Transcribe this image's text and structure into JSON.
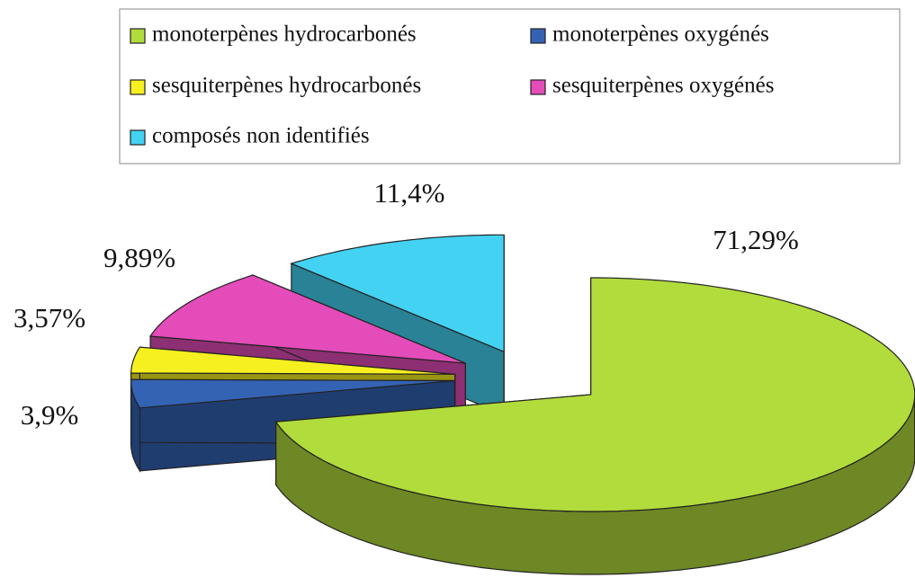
{
  "chart_data": {
    "type": "pie3d",
    "series": [
      {
        "name": "monoterpènes hydrocarbonés",
        "color": "#b2dc3c"
      },
      {
        "name": "monoterpènes oxygénés",
        "color": "#3463b4"
      },
      {
        "name": "sesquiterpènes hydrocarbonés",
        "color": "#f7f020"
      },
      {
        "name": "sesquiterpènes oxygénés",
        "color": "#e44cba"
      },
      {
        "name": "composés non identifiés",
        "color": "#44d2f2"
      }
    ],
    "values": [
      71.29,
      3.9,
      3.57,
      9.89,
      11.4
    ],
    "value_labels": [
      "71,29%",
      "3,9%",
      "3,57%",
      "9,89%",
      "11,4%"
    ],
    "legend": "top"
  }
}
